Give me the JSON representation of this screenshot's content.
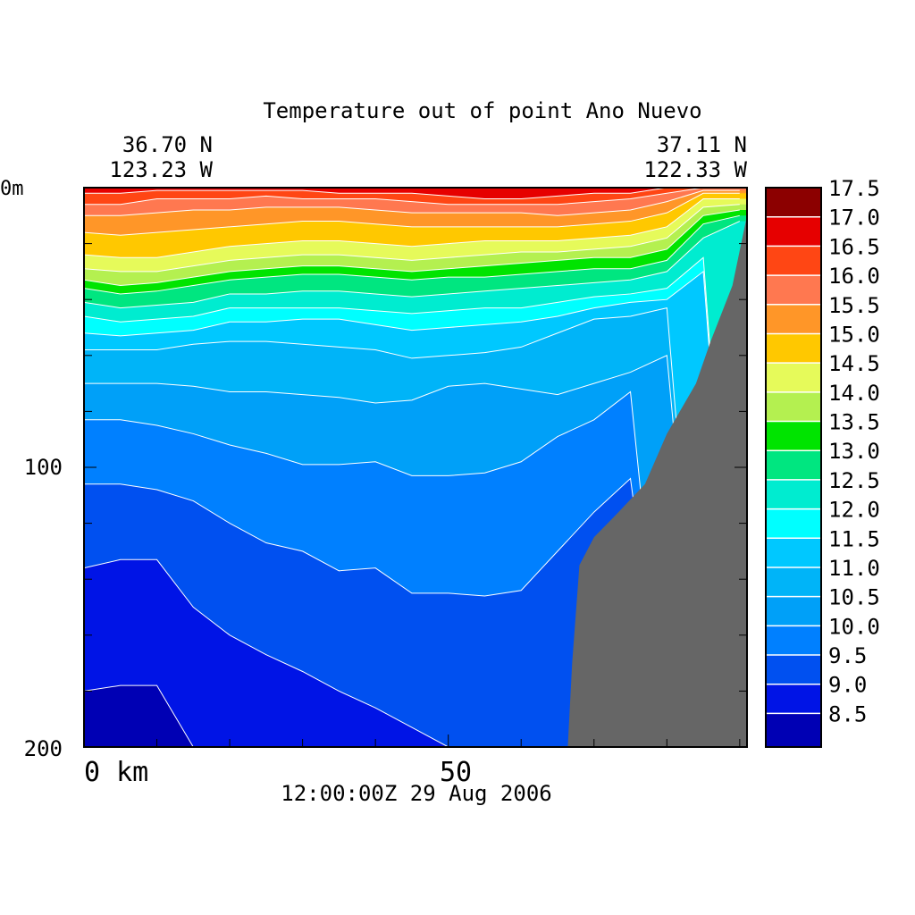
{
  "chart_data": {
    "type": "heatmap",
    "title": "Temperature out of point Ano Nuevo",
    "left_end": {
      "lat": "36.70 N",
      "lon": "123.23 W"
    },
    "right_end": {
      "lat": "37.11 N",
      "lon": "122.33 W"
    },
    "timestamp": "12:00:00Z  29 Aug 2006",
    "x_axis": {
      "tick_labels": [
        "0 km",
        "50"
      ],
      "range_km": [
        0,
        91
      ]
    },
    "y_axis": {
      "tick_labels": [
        "0m",
        "100",
        "200"
      ],
      "range_m": [
        0,
        200
      ],
      "inverted": true
    },
    "bathymetry_color": "#666666",
    "levels": [
      8.5,
      9.0,
      9.5,
      10.0,
      10.5,
      11.0,
      11.5,
      12.0,
      12.5,
      13.0,
      13.5,
      14.0,
      14.5,
      15.0,
      15.5,
      16.0,
      16.5,
      17.0,
      17.5
    ],
    "level_labels": [
      "8.5",
      "9.0",
      "9.5",
      "10.0",
      "10.5",
      "11.0",
      "11.5",
      "12.0",
      "12.5",
      "13.0",
      "13.5",
      "14.0",
      "14.5",
      "15.0",
      "15.5",
      "16.0",
      "16.5",
      "17.0",
      "17.5"
    ],
    "colors": [
      "#0000b4",
      "#0014e6",
      "#0050f0",
      "#0080ff",
      "#00a0f8",
      "#00b4f8",
      "#00c8ff",
      "#00ffff",
      "#00ecd0",
      "#00e680",
      "#00e400",
      "#b4f050",
      "#e6fa5a",
      "#ffc800",
      "#ff9628",
      "#ff7850",
      "#ff4614",
      "#e60000",
      "#8c0000"
    ],
    "x_km": [
      0,
      5,
      10,
      15,
      20,
      25,
      30,
      35,
      40,
      45,
      50,
      55,
      60,
      65,
      70,
      75,
      80,
      85,
      90
    ],
    "isotherm_depths_m": {
      "8.5": [
        180,
        178,
        178,
        200,
        200,
        200,
        200,
        200,
        200,
        200,
        200,
        200,
        200,
        200,
        200,
        200,
        200,
        200,
        200
      ],
      "9.0": [
        136,
        133,
        133,
        150,
        160,
        167,
        173,
        180,
        186,
        193,
        200,
        200,
        200,
        200,
        200,
        200,
        200,
        200,
        200
      ],
      "9.5": [
        106,
        106,
        108,
        112,
        120,
        127,
        130,
        137,
        136,
        145,
        145,
        146,
        144,
        130,
        116,
        104,
        200,
        200,
        200
      ],
      "10.0": [
        83,
        83,
        85,
        88,
        92,
        95,
        99,
        99,
        98,
        103,
        103,
        102,
        98,
        89,
        83,
        73,
        200,
        200,
        200
      ],
      "10.5": [
        70,
        70,
        70,
        71,
        73,
        73,
        74,
        75,
        77,
        76,
        71,
        70,
        72,
        74,
        70,
        66,
        60,
        200,
        200
      ],
      "11.0": [
        58,
        58,
        58,
        56,
        55,
        55,
        56,
        57,
        58,
        61,
        60,
        59,
        57,
        52,
        47,
        46,
        43,
        200,
        200
      ],
      "11.5": [
        52,
        53,
        52,
        51,
        48,
        48,
        47,
        47,
        49,
        51,
        50,
        49,
        48,
        46,
        43,
        41,
        40,
        30,
        200
      ],
      "12.0": [
        46,
        48,
        47,
        46,
        43,
        43,
        43,
        43,
        44,
        45,
        44,
        43,
        43,
        41,
        39,
        38,
        36,
        25,
        200
      ],
      "12.5": [
        41,
        43,
        42,
        41,
        38,
        38,
        37,
        37,
        38,
        39,
        38,
        37,
        36,
        35,
        34,
        33,
        30,
        18,
        12
      ],
      "13.0": [
        36,
        38,
        37,
        35,
        33,
        32,
        31,
        31,
        32,
        33,
        32,
        32,
        31,
        30,
        29,
        29,
        26,
        13,
        10
      ],
      "13.5": [
        33,
        35,
        34,
        32,
        30,
        29,
        28,
        28,
        29,
        30,
        29,
        28,
        27,
        26,
        25,
        25,
        22,
        10,
        8
      ],
      "14.0": [
        29,
        30,
        30,
        28,
        26,
        25,
        24,
        24,
        25,
        26,
        25,
        24,
        23,
        23,
        22,
        21,
        18,
        7,
        6
      ],
      "14.5": [
        24,
        25,
        25,
        23,
        21,
        20,
        19,
        19,
        20,
        21,
        20,
        19,
        19,
        19,
        18,
        17,
        14,
        4,
        4
      ],
      "15.0": [
        16,
        17,
        16,
        15,
        14,
        13,
        12,
        12,
        13,
        14,
        14,
        14,
        14,
        14,
        13,
        12,
        9,
        2,
        2
      ],
      "15.5": [
        10,
        10,
        9,
        8,
        8,
        7,
        7,
        7,
        8,
        9,
        9,
        9,
        9,
        10,
        9,
        8,
        5,
        1,
        1
      ],
      "16.0": [
        6,
        6,
        4,
        4,
        4,
        3,
        4,
        4,
        4,
        5,
        6,
        6,
        6,
        6,
        5,
        4,
        2,
        0,
        0
      ],
      "16.5": [
        2,
        2,
        1,
        1,
        1,
        1,
        1,
        2,
        2,
        2,
        3,
        4,
        4,
        3,
        2,
        2,
        0,
        0,
        0
      ],
      "17.0": [
        0,
        0,
        0,
        0,
        0,
        0,
        0,
        0,
        0,
        0,
        0,
        0,
        0,
        0,
        0,
        0,
        0,
        0,
        0
      ],
      "17.5": [
        0,
        0,
        0,
        0,
        0,
        0,
        0,
        0,
        0,
        0,
        0,
        0,
        0,
        0,
        0,
        0,
        0,
        0,
        0
      ]
    },
    "bottom_profile": {
      "x_km": [
        66.4,
        67,
        68,
        70,
        73,
        77,
        80,
        84,
        86,
        89,
        91,
        91
      ],
      "depth_m": [
        200,
        170,
        135,
        125,
        117,
        106,
        88,
        70,
        55,
        35,
        10,
        0
      ]
    }
  }
}
